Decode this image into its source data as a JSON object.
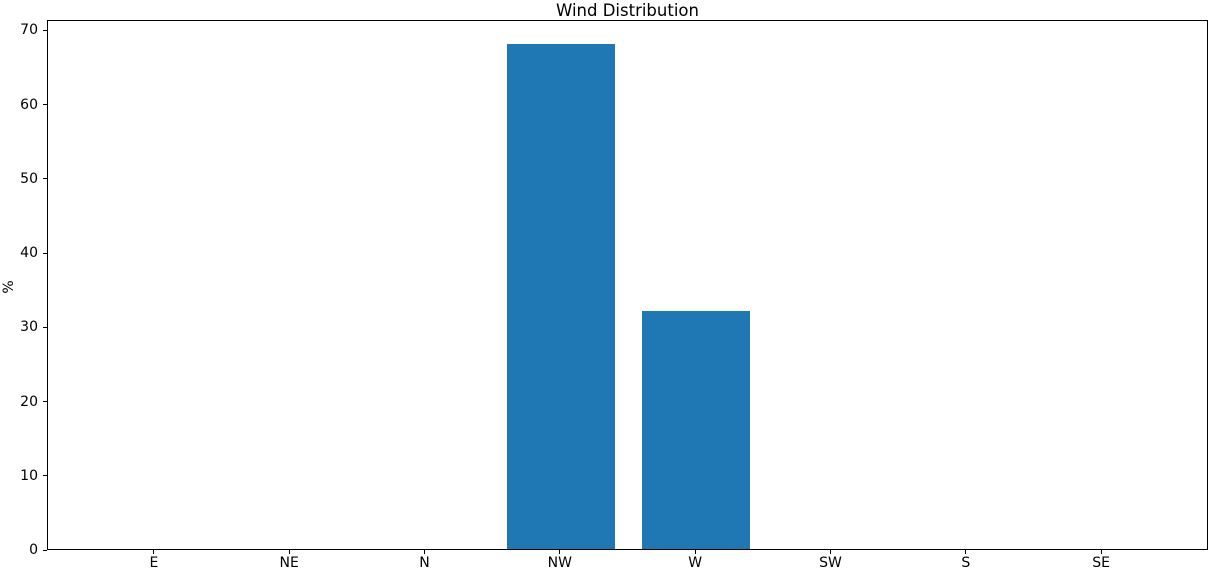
{
  "chart_data": {
    "type": "bar",
    "title": "Wind Distribution",
    "xlabel": "",
    "ylabel": "%",
    "categories": [
      "E",
      "NE",
      "N",
      "NW",
      "W",
      "SW",
      "S",
      "SE"
    ],
    "values": [
      0,
      0,
      0,
      68,
      32,
      0,
      0,
      0
    ],
    "yticks": [
      0,
      10,
      20,
      30,
      40,
      50,
      60,
      70
    ],
    "ylim": [
      0,
      71.4
    ],
    "xlim": [
      -0.79,
      7.79
    ],
    "bar_width": 0.8,
    "bar_color": "#1f77b4",
    "spine_color": "#000000",
    "grid": false,
    "legend": "none"
  }
}
